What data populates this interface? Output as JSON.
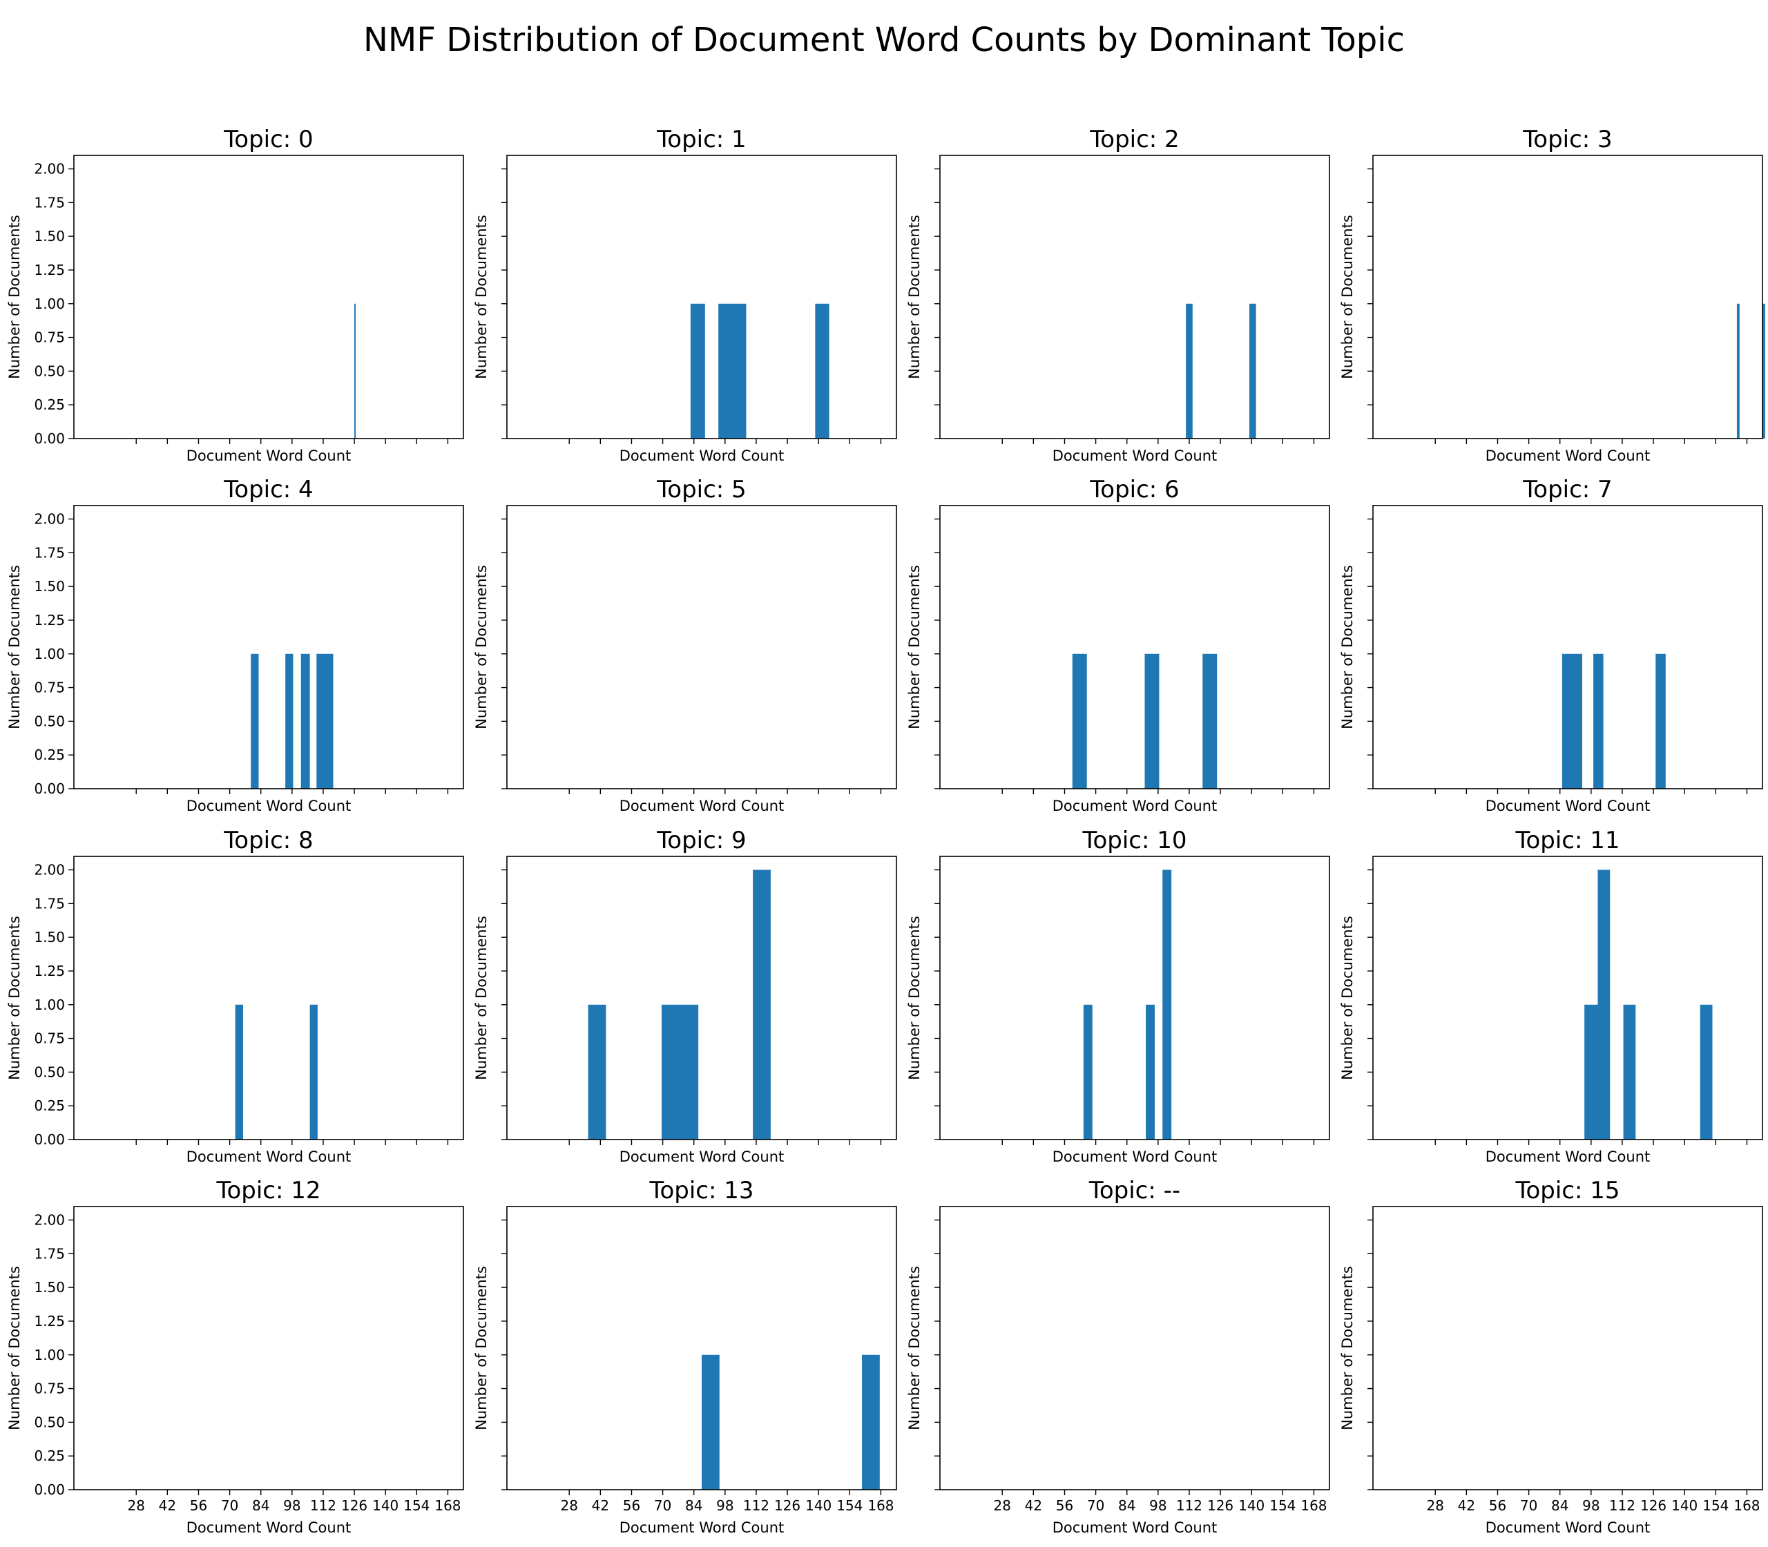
{
  "title": "NMF Distribution of Document Word Counts by Dominant Topic",
  "colors": {
    "bar": "#1f77b4",
    "axis": "#000000",
    "background": "#ffffff"
  },
  "chart_data": {
    "type": "bar",
    "subplot_grid": {
      "rows": 4,
      "cols": 4,
      "sharex": true,
      "sharey": true
    },
    "xlabel": "Document Word Count",
    "ylabel": "Number of Documents",
    "xlim": [
      0,
      175
    ],
    "ylim": [
      0,
      2.1
    ],
    "xticks": [
      28,
      42,
      56,
      70,
      84,
      98,
      112,
      126,
      140,
      154,
      168
    ],
    "yticks": [
      0.0,
      0.25,
      0.5,
      0.75,
      1.0,
      1.25,
      1.5,
      1.75,
      2.0
    ],
    "ytick_labels": [
      "0.00",
      "0.25",
      "0.50",
      "0.75",
      "1.00",
      "1.25",
      "1.50",
      "1.75",
      "2.00"
    ],
    "grid": false,
    "panels": [
      {
        "title": "Topic: 0",
        "bars": [
          {
            "x0": 126.0,
            "x1": 126.6,
            "count": 1
          }
        ]
      },
      {
        "title": "Topic: 1",
        "bars": [
          {
            "x0": 82.5,
            "x1": 89.0,
            "count": 1
          },
          {
            "x0": 95.0,
            "x1": 107.5,
            "count": 1
          },
          {
            "x0": 138.5,
            "x1": 144.8,
            "count": 1
          }
        ]
      },
      {
        "title": "Topic: 2",
        "bars": [
          {
            "x0": 110.5,
            "x1": 113.5,
            "count": 1
          },
          {
            "x0": 139.0,
            "x1": 142.0,
            "count": 1
          }
        ]
      },
      {
        "title": "Topic: 3",
        "bars": [
          {
            "x0": 163.5,
            "x1": 164.7,
            "count": 1
          },
          {
            "x0": 175.0,
            "x1": 176.2,
            "count": 1
          }
        ]
      },
      {
        "title": "Topic: 4",
        "bars": [
          {
            "x0": 79.5,
            "x1": 83.0,
            "count": 1
          },
          {
            "x0": 95.0,
            "x1": 98.5,
            "count": 1
          },
          {
            "x0": 102.0,
            "x1": 106.0,
            "count": 1
          },
          {
            "x0": 109.0,
            "x1": 116.5,
            "count": 1
          }
        ]
      },
      {
        "title": "Topic: 5",
        "bars": []
      },
      {
        "title": "Topic: 6",
        "bars": [
          {
            "x0": 59.5,
            "x1": 66.0,
            "count": 1
          },
          {
            "x0": 92.0,
            "x1": 98.5,
            "count": 1
          },
          {
            "x0": 118.0,
            "x1": 124.5,
            "count": 1
          }
        ]
      },
      {
        "title": "Topic: 7",
        "bars": [
          {
            "x0": 85.0,
            "x1": 94.0,
            "count": 1
          },
          {
            "x0": 99.0,
            "x1": 103.5,
            "count": 1
          },
          {
            "x0": 127.0,
            "x1": 131.5,
            "count": 1
          }
        ]
      },
      {
        "title": "Topic: 8",
        "bars": [
          {
            "x0": 72.5,
            "x1": 76.0,
            "count": 1
          },
          {
            "x0": 106.0,
            "x1": 109.5,
            "count": 1
          }
        ]
      },
      {
        "title": "Topic: 9",
        "bars": [
          {
            "x0": 36.5,
            "x1": 44.5,
            "count": 1
          },
          {
            "x0": 69.5,
            "x1": 86.0,
            "count": 1
          },
          {
            "x0": 110.5,
            "x1": 118.5,
            "count": 2
          }
        ]
      },
      {
        "title": "Topic: 10",
        "bars": [
          {
            "x0": 64.5,
            "x1": 68.5,
            "count": 1
          },
          {
            "x0": 92.5,
            "x1": 96.5,
            "count": 1
          },
          {
            "x0": 100.0,
            "x1": 104.0,
            "count": 2
          }
        ]
      },
      {
        "title": "Topic: 11",
        "bars": [
          {
            "x0": 95.0,
            "x1": 101.0,
            "count": 1
          },
          {
            "x0": 101.0,
            "x1": 106.5,
            "count": 2
          },
          {
            "x0": 112.5,
            "x1": 118.0,
            "count": 1
          },
          {
            "x0": 147.0,
            "x1": 152.5,
            "count": 1
          }
        ]
      },
      {
        "title": "Topic: 12",
        "bars": []
      },
      {
        "title": "Topic: 13",
        "bars": [
          {
            "x0": 87.5,
            "x1": 95.5,
            "count": 1
          },
          {
            "x0": 159.5,
            "x1": 167.5,
            "count": 1
          }
        ]
      },
      {
        "title": "Topic: --",
        "bars": []
      },
      {
        "title": "Topic: 15",
        "bars": []
      }
    ]
  }
}
